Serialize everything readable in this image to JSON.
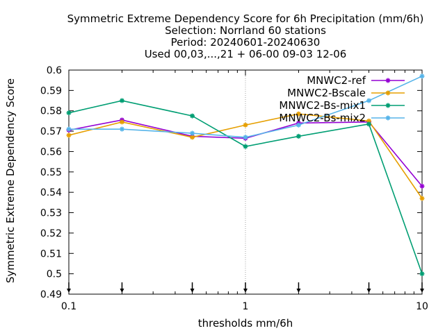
{
  "chart_data": {
    "type": "line",
    "title_lines": [
      "Symmetric Extreme Dependency Score  for 6h Precipitation (mm/6h)",
      "Selection: Norrland     60 stations",
      "Period: 20240601-20240630",
      "Used 00,03,...,21 + 06-00 09-03 12-06"
    ],
    "xlabel": "thresholds mm/6h",
    "ylabel": "Symmetric Extreme Dependency Score",
    "x_scale": "log",
    "xlim": [
      0.1,
      10
    ],
    "ylim": [
      0.49,
      0.6
    ],
    "x_ticks": [
      {
        "value": 0.1,
        "label": "0.1"
      },
      {
        "value": 1,
        "label": "1"
      },
      {
        "value": 10,
        "label": "10"
      }
    ],
    "y_ticks": [
      {
        "value": 0.49,
        "label": "0.49"
      },
      {
        "value": 0.5,
        "label": "0.5"
      },
      {
        "value": 0.51,
        "label": "0.51"
      },
      {
        "value": 0.52,
        "label": "0.52"
      },
      {
        "value": 0.53,
        "label": "0.53"
      },
      {
        "value": 0.54,
        "label": "0.54"
      },
      {
        "value": 0.55,
        "label": "0.55"
      },
      {
        "value": 0.56,
        "label": "0.56"
      },
      {
        "value": 0.57,
        "label": "0.57"
      },
      {
        "value": 0.58,
        "label": "0.58"
      },
      {
        "value": 0.59,
        "label": "0.59"
      },
      {
        "value": 0.6,
        "label": "0.6"
      }
    ],
    "grid_x": [
      1
    ],
    "threshold_markers": [
      0.1,
      0.2,
      0.5,
      1,
      2,
      5,
      10
    ],
    "legend_position": "top-right",
    "x": [
      0.1,
      0.2,
      0.5,
      1,
      2,
      5,
      10
    ],
    "series": [
      {
        "name": "MNWC2-ref",
        "color": "#9400d3",
        "values": [
          0.5705,
          0.5755,
          0.5675,
          0.5665,
          0.574,
          0.5745,
          0.543
        ]
      },
      {
        "name": "MNWC2-Bscale",
        "color": "#e69f00",
        "values": [
          0.568,
          0.5745,
          0.567,
          0.573,
          0.5785,
          0.575,
          0.537
        ]
      },
      {
        "name": "MNWC2-Bs-mix1",
        "color": "#009e73",
        "values": [
          0.579,
          0.585,
          0.5775,
          0.5625,
          0.5675,
          0.5735,
          0.5
        ]
      },
      {
        "name": "MNWC2-Bs-mix2",
        "color": "#56b4e9",
        "values": [
          0.571,
          0.571,
          0.569,
          0.567,
          0.573,
          0.585,
          0.597
        ]
      }
    ]
  }
}
